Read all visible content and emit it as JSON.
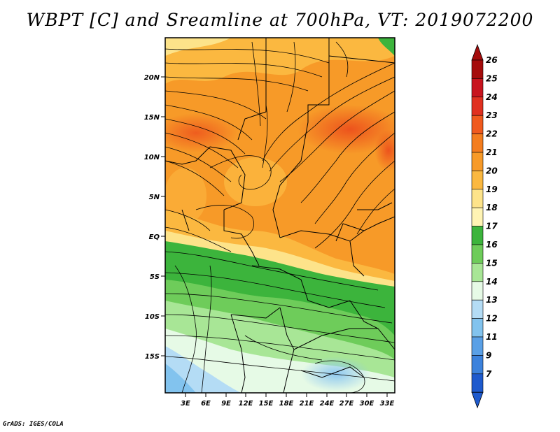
{
  "title": "WBPT [C] and Sreamline at 700hPa, VT: 2019072200",
  "footer": "GrADS: IGES/COLA",
  "map": {
    "lat_labels": [
      "20N",
      "15N",
      "10N",
      "5N",
      "EQ",
      "5S",
      "10S",
      "15S"
    ],
    "lon_labels": [
      "3E",
      "6E",
      "9E",
      "12E",
      "15E",
      "18E",
      "21E",
      "24E",
      "27E",
      "30E",
      "33E"
    ],
    "lat_range": [
      -20,
      25
    ],
    "lon_range": [
      0,
      34
    ]
  },
  "colorbar": {
    "levels": [
      "26",
      "25",
      "24",
      "23",
      "22",
      "21",
      "20",
      "19",
      "18",
      "17",
      "16",
      "15",
      "14",
      "13",
      "12",
      "11",
      "9",
      "7"
    ],
    "colors": [
      "#a50c0c",
      "#c8141e",
      "#e03020",
      "#f05a1e",
      "#f47d1e",
      "#f79a28",
      "#fbb840",
      "#fde38a",
      "#fff4b4",
      "#3cb43c",
      "#6ecc5a",
      "#a8e696",
      "#e6fae6",
      "#b4dcf5",
      "#82c3ee",
      "#5aa0e6",
      "#3c82dc",
      "#1e5acd"
    ]
  }
}
